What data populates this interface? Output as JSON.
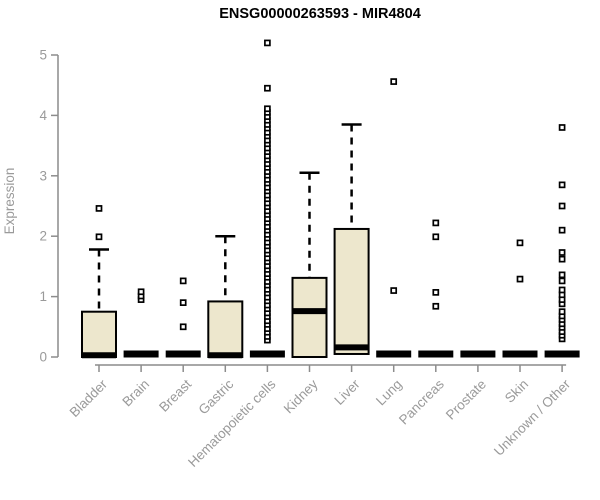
{
  "title": "ENSG00000263593 - MIR4804",
  "chart_data": {
    "type": "boxplot",
    "title": "ENSG00000263593 - MIR4804",
    "xlabel": "",
    "ylabel": "Expression",
    "ylim": [
      0,
      5.3
    ],
    "y_ticks": [
      0,
      1,
      2,
      3,
      4,
      5
    ],
    "grid": false,
    "legend": "none",
    "colors": {
      "box_fill": "#EDE7CD",
      "box_stroke": "#000000",
      "axis": "#8C8C8C",
      "tick_label": "#9A9A9A",
      "title_color": "#000000",
      "background": "#FFFFFF"
    },
    "categories": [
      "Bladder",
      "Brain",
      "Breast",
      "Gastric",
      "Hematopoietic cells",
      "Kidney",
      "Liver",
      "Lung",
      "Pancreas",
      "Prostate",
      "Skin",
      "Unknown / Other"
    ],
    "boxes": [
      {
        "category": "Bladder",
        "q1": 0,
        "median": 0.03,
        "q3": 0.75,
        "whisker_low": 0,
        "whisker_high": 1.78,
        "outliers": [
          1.99,
          2.46
        ]
      },
      {
        "category": "Brain",
        "q1": 0,
        "median": 0,
        "q3": 0,
        "whisker_low": 0,
        "whisker_high": 0,
        "outliers": [
          0.95,
          1.01,
          1.08
        ]
      },
      {
        "category": "Breast",
        "q1": 0,
        "median": 0,
        "q3": 0,
        "whisker_low": 0,
        "whisker_high": 0,
        "outliers": [
          0.5,
          0.9,
          1.26
        ]
      },
      {
        "category": "Gastric",
        "q1": 0,
        "median": 0.03,
        "q3": 0.92,
        "whisker_low": 0,
        "whisker_high": 2.0,
        "outliers": []
      },
      {
        "category": "Hematopoietic cells",
        "q1": 0,
        "median": 0,
        "q3": 0,
        "whisker_low": 0,
        "whisker_high": 0,
        "outliers": [
          0.28,
          0.34,
          0.41,
          0.47,
          0.54,
          0.6,
          0.67,
          0.73,
          0.8,
          0.86,
          0.93,
          0.99,
          1.06,
          1.12,
          1.19,
          1.25,
          1.32,
          1.38,
          1.45,
          1.51,
          1.58,
          1.64,
          1.71,
          1.77,
          1.84,
          1.9,
          1.97,
          2.03,
          2.1,
          2.16,
          2.23,
          2.29,
          2.36,
          2.42,
          2.49,
          2.55,
          2.62,
          2.68,
          2.75,
          2.81,
          2.88,
          2.94,
          3.01,
          3.07,
          3.14,
          3.2,
          3.27,
          3.33,
          3.4,
          3.46,
          3.53,
          3.59,
          3.66,
          3.72,
          3.79,
          3.85,
          3.92,
          3.98,
          4.05,
          4.11,
          4.45,
          5.2
        ]
      },
      {
        "category": "Kidney",
        "q1": 0,
        "median": 0.76,
        "q3": 1.31,
        "whisker_low": 0,
        "whisker_high": 3.05,
        "outliers": []
      },
      {
        "category": "Liver",
        "q1": 0.05,
        "median": 0.16,
        "q3": 2.12,
        "whisker_low": 0.05,
        "whisker_high": 3.85,
        "outliers": []
      },
      {
        "category": "Lung",
        "q1": 0,
        "median": 0,
        "q3": 0,
        "whisker_low": 0,
        "whisker_high": 0,
        "outliers": [
          1.1,
          4.56
        ]
      },
      {
        "category": "Pancreas",
        "q1": 0,
        "median": 0,
        "q3": 0,
        "whisker_low": 0,
        "whisker_high": 0,
        "outliers": [
          0.84,
          1.07,
          1.99,
          2.22
        ]
      },
      {
        "category": "Prostate",
        "q1": 0,
        "median": 0,
        "q3": 0,
        "whisker_low": 0,
        "whisker_high": 0,
        "outliers": []
      },
      {
        "category": "Skin",
        "q1": 0,
        "median": 0,
        "q3": 0,
        "whisker_low": 0,
        "whisker_high": 0,
        "outliers": [
          1.29,
          1.89
        ]
      },
      {
        "category": "Unknown / Other",
        "q1": 0,
        "median": 0,
        "q3": 0,
        "whisker_low": 0,
        "whisker_high": 0,
        "outliers": [
          0.3,
          0.36,
          0.42,
          0.49,
          0.55,
          0.62,
          0.68,
          0.75,
          0.88,
          0.95,
          1.03,
          1.11,
          1.26,
          1.36,
          1.62,
          1.73,
          2.1,
          2.5,
          2.85,
          3.8
        ]
      }
    ]
  }
}
